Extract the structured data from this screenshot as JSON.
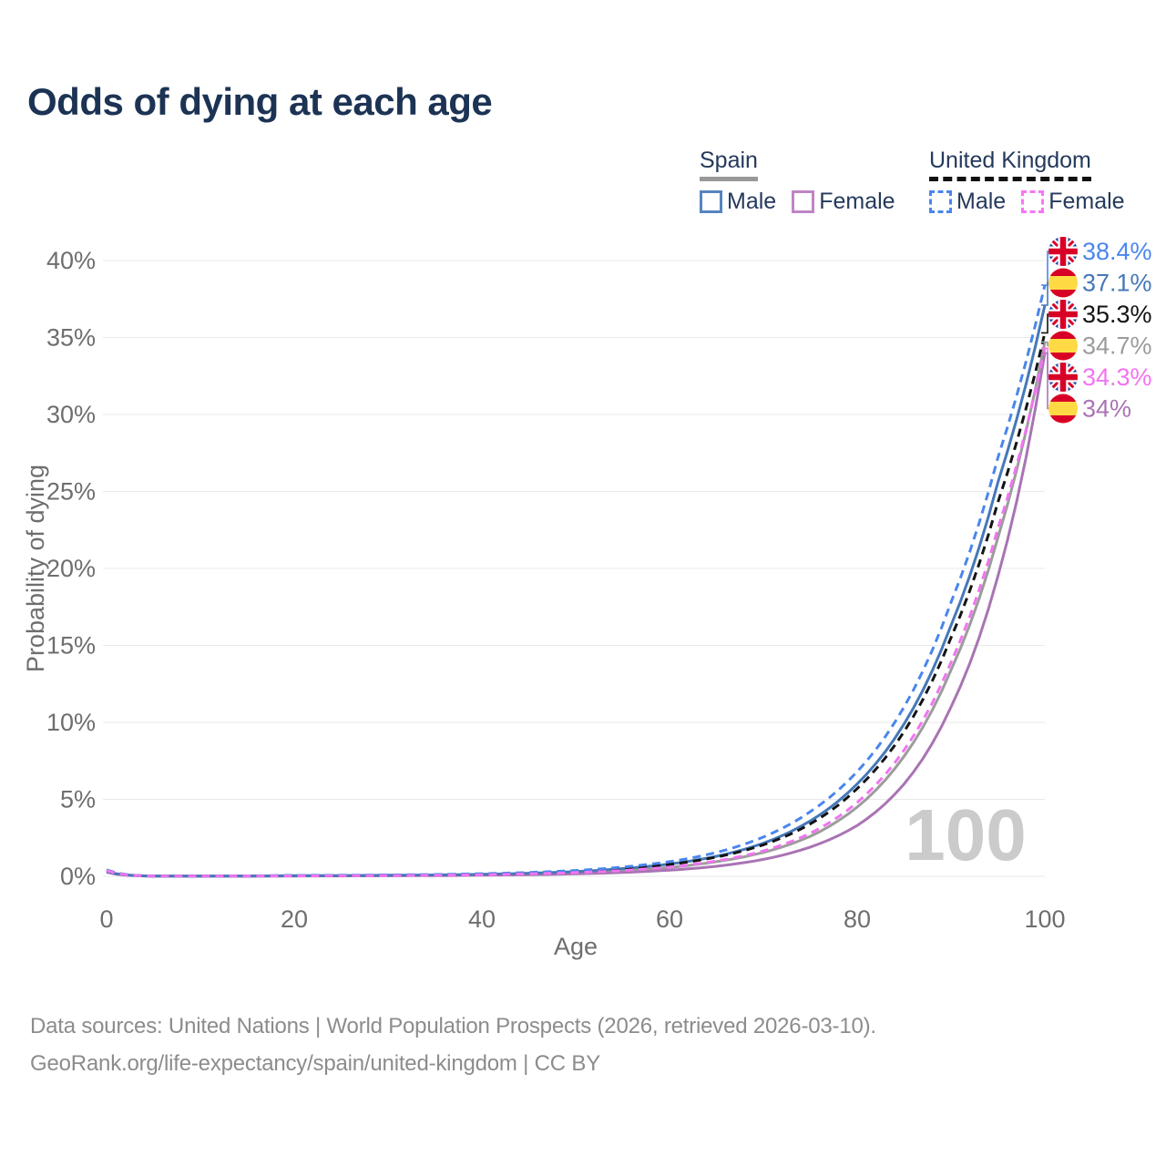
{
  "title": "Odds of dying at each age",
  "legend": {
    "groups": [
      {
        "id": "spain",
        "label": "Spain",
        "underline": "solid",
        "underline_color": "#999999",
        "items": [
          {
            "label": "Male",
            "color": "#5585bf",
            "dash": false
          },
          {
            "label": "Female",
            "color": "#c084c5",
            "dash": false
          }
        ]
      },
      {
        "id": "uk",
        "label": "United Kingdom",
        "underline": "dashed",
        "underline_color": "#111111",
        "items": [
          {
            "label": "Male",
            "color": "#4a86ec",
            "dash": true
          },
          {
            "label": "Female",
            "color": "#f576f5",
            "dash": true
          }
        ]
      }
    ]
  },
  "chart_data": {
    "type": "line",
    "title": "Odds of dying at each age",
    "xlabel": "Age",
    "ylabel": "Probability of dying",
    "xlim": [
      0,
      100
    ],
    "ylim_percent": [
      0,
      40
    ],
    "x_ticks": [
      0,
      20,
      40,
      60,
      80,
      100
    ],
    "y_ticks_percent": [
      0,
      5,
      10,
      15,
      20,
      25,
      30,
      35,
      40
    ],
    "grid": "horizontal",
    "legend_position": "top-right",
    "watermark": "100",
    "ages": [
      0,
      5,
      10,
      15,
      20,
      25,
      30,
      35,
      40,
      45,
      50,
      55,
      60,
      65,
      70,
      75,
      80,
      85,
      90,
      95,
      100
    ],
    "series": [
      {
        "id": "spain-total",
        "name": "Spain Total",
        "country": "spain",
        "line": "solid",
        "color": "#9c9c9c",
        "end_label": "34.7%",
        "values_percent": [
          0.3,
          0.013,
          0.009,
          0.018,
          0.03,
          0.035,
          0.05,
          0.065,
          0.1,
          0.15,
          0.23,
          0.37,
          0.58,
          0.95,
          1.55,
          2.6,
          4.5,
          7.8,
          13.4,
          22.0,
          34.7
        ]
      },
      {
        "id": "spain-female",
        "name": "Spain Female",
        "country": "spain",
        "line": "solid",
        "color": "#a974b3",
        "end_label": "34%",
        "values_percent": [
          0.27,
          0.012,
          0.008,
          0.015,
          0.02,
          0.025,
          0.035,
          0.045,
          0.07,
          0.1,
          0.16,
          0.25,
          0.4,
          0.65,
          1.1,
          1.9,
          3.3,
          6.0,
          11.0,
          19.5,
          34.0
        ]
      },
      {
        "id": "spain-male",
        "name": "Spain Male",
        "country": "spain",
        "line": "solid",
        "color": "#4678b8",
        "end_label": "37.1%",
        "values_percent": [
          0.32,
          0.015,
          0.01,
          0.02,
          0.04,
          0.05,
          0.07,
          0.09,
          0.13,
          0.2,
          0.31,
          0.5,
          0.8,
          1.3,
          2.15,
          3.6,
          6.0,
          9.9,
          16.3,
          25.6,
          37.1
        ]
      },
      {
        "id": "uk-total",
        "name": "United Kingdom Total",
        "country": "uk",
        "line": "dashed",
        "color": "#141414",
        "end_label": "35.3%",
        "values_percent": [
          0.4,
          0.018,
          0.01,
          0.025,
          0.045,
          0.05,
          0.07,
          0.09,
          0.13,
          0.2,
          0.3,
          0.48,
          0.77,
          1.25,
          2.05,
          3.4,
          5.7,
          9.4,
          15.5,
          24.3,
          35.3
        ]
      },
      {
        "id": "uk-male",
        "name": "United Kingdom Male",
        "country": "uk",
        "line": "dashed",
        "color": "#4a86ec",
        "end_label": "38.4%",
        "values_percent": [
          0.42,
          0.02,
          0.012,
          0.03,
          0.06,
          0.07,
          0.09,
          0.12,
          0.17,
          0.25,
          0.38,
          0.6,
          0.95,
          1.55,
          2.55,
          4.2,
          6.8,
          11.0,
          17.8,
          27.2,
          38.4
        ]
      },
      {
        "id": "uk-female",
        "name": "United Kingdom Female",
        "country": "uk",
        "line": "dashed",
        "color": "#f174f1",
        "end_label": "34.3%",
        "values_percent": [
          0.37,
          0.015,
          0.009,
          0.02,
          0.03,
          0.035,
          0.05,
          0.07,
          0.1,
          0.16,
          0.24,
          0.38,
          0.6,
          1.0,
          1.65,
          2.8,
          4.8,
          8.2,
          13.9,
          22.6,
          34.3
        ]
      }
    ]
  },
  "footer": {
    "line1": "Data sources: United Nations | World Population Prospects (2026, retrieved 2026-03-10).",
    "line2": "GeoRank.org/life-expectancy/spain/united-kingdom | CC BY"
  }
}
